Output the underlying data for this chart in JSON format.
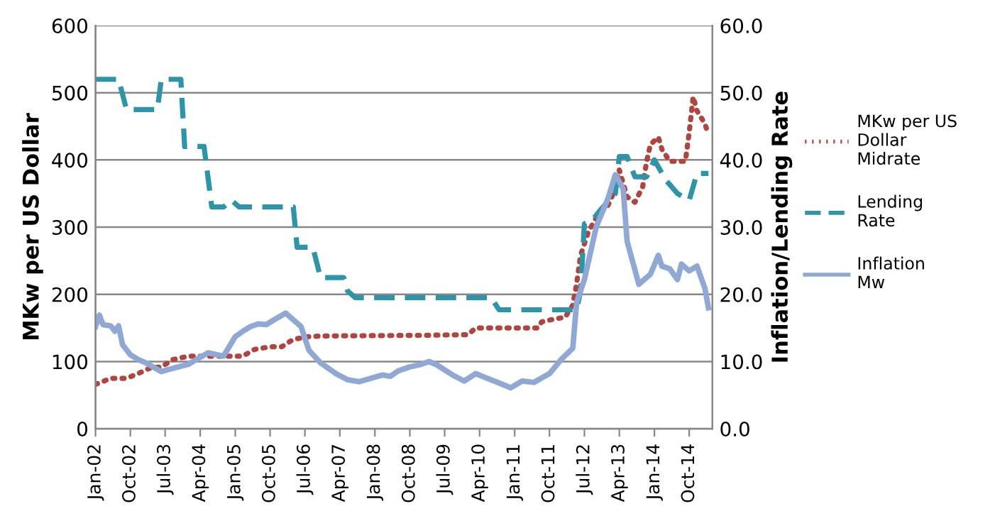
{
  "chart_data": {
    "type": "line",
    "xlabel": null,
    "ylabel": "MKw per US Dollar",
    "y2label": "Inflation/Lending Rate",
    "xlim": [
      "2002-01",
      "2015-04"
    ],
    "xticks": [
      {
        "value": "2002-01",
        "label": "Jan-02"
      },
      {
        "value": "2002-10",
        "label": "Oct-02"
      },
      {
        "value": "2003-07",
        "label": "Jul-03"
      },
      {
        "value": "2004-04",
        "label": "Apr-04"
      },
      {
        "value": "2005-01",
        "label": "Jan-05"
      },
      {
        "value": "2005-10",
        "label": "Oct-05"
      },
      {
        "value": "2006-07",
        "label": "Jul-06"
      },
      {
        "value": "2007-04",
        "label": "Apr-07"
      },
      {
        "value": "2008-01",
        "label": "Jan-08"
      },
      {
        "value": "2008-10",
        "label": "Oct-08"
      },
      {
        "value": "2009-07",
        "label": "Jul-09"
      },
      {
        "value": "2010-04",
        "label": "Apr-10"
      },
      {
        "value": "2011-01",
        "label": "Jan-11"
      },
      {
        "value": "2011-10",
        "label": "Oct-11"
      },
      {
        "value": "2012-07",
        "label": "Jul-12"
      },
      {
        "value": "2013-04",
        "label": "Apr-13"
      },
      {
        "value": "2014-01",
        "label": "Jan-14"
      },
      {
        "value": "2014-10",
        "label": "Oct-14"
      }
    ],
    "ylim": [
      0,
      600
    ],
    "yticks": [
      0,
      100,
      200,
      300,
      400,
      500,
      600
    ],
    "y2lim": [
      0,
      60
    ],
    "y2ticks": [
      {
        "value": 0,
        "label": "0.0"
      },
      {
        "value": 10,
        "label": "10.0"
      },
      {
        "value": 20,
        "label": "20.0"
      },
      {
        "value": 30,
        "label": "30.0"
      },
      {
        "value": 40,
        "label": "40.0"
      },
      {
        "value": 50,
        "label": "50.0"
      },
      {
        "value": 60,
        "label": "60.0"
      }
    ],
    "grid": "y",
    "legend": "right",
    "series": [
      {
        "name": "MKw per US Dollar Midrate",
        "color": "#b04440",
        "line_style": "dotted",
        "x": [
          "2002-01",
          "2002-05",
          "2002-09",
          "2002-12",
          "2003-03",
          "2003-06",
          "2003-09",
          "2004-01",
          "2005-03",
          "2005-06",
          "2005-10",
          "2006-01",
          "2006-04",
          "2006-08",
          "2006-11",
          "2009-01",
          "2010-01",
          "2010-03",
          "2011-07",
          "2011-08",
          "2011-11",
          "2012-02",
          "2012-04",
          "2012-05",
          "2012-06",
          "2012-08",
          "2012-10",
          "2013-01",
          "2013-03",
          "2013-04",
          "2013-06",
          "2013-08",
          "2013-10",
          "2013-11",
          "2013-12",
          "2014-02",
          "2014-03",
          "2014-05",
          "2014-09",
          "2014-10",
          "2014-11",
          "2014-12",
          "2015-02",
          "2015-03"
        ],
        "values": [
          66,
          75,
          75,
          82,
          90,
          92,
          103,
          108,
          108,
          118,
          122,
          122,
          133,
          137,
          138,
          139,
          140,
          150,
          150,
          159,
          163,
          166,
          184,
          216,
          258,
          293,
          314,
          332,
          357,
          385,
          345,
          337,
          360,
          398,
          423,
          434,
          416,
          398,
          398,
          441,
          494,
          473,
          454,
          437
        ]
      },
      {
        "name": "Lending Rate",
        "color": "#2e94a8",
        "line_style": "dashed",
        "axis": "y2",
        "x": [
          "2002-01",
          "2002-07",
          "2002-09",
          "2003-05",
          "2003-06",
          "2003-11",
          "2003-12",
          "2004-05",
          "2004-07",
          "2004-10",
          "2004-12",
          "2005-02",
          "2006-04",
          "2006-05",
          "2006-09",
          "2006-11",
          "2007-05",
          "2007-06",
          "2007-08",
          "2010-07",
          "2010-09",
          "2012-05",
          "2012-06",
          "2012-07",
          "2012-09",
          "2012-11",
          "2013-03",
          "2013-04",
          "2013-06",
          "2013-08",
          "2013-11",
          "2014-01",
          "2014-04",
          "2014-07",
          "2014-10",
          "2014-12",
          "2015-03"
        ],
        "values": [
          52.0,
          52.0,
          47.5,
          47.5,
          52.0,
          52.0,
          42.0,
          42.0,
          33.0,
          33.0,
          34.0,
          33.0,
          33.0,
          27.0,
          27.0,
          22.5,
          22.5,
          20.5,
          19.5,
          19.5,
          17.7,
          17.7,
          20.5,
          30.5,
          31.0,
          32.5,
          35.0,
          40.5,
          40.5,
          37.5,
          37.5,
          40.0,
          37.0,
          35.0,
          34.0,
          38.0,
          38.0
        ]
      },
      {
        "name": "Inflation Mw",
        "color": "#8fa8d4",
        "line_style": "solid",
        "axis": "y2",
        "x": [
          "2002-01",
          "2002-02",
          "2002-03",
          "2002-05",
          "2002-06",
          "2002-07",
          "2002-08",
          "2002-10",
          "2002-12",
          "2003-02",
          "2003-06",
          "2003-09",
          "2004-01",
          "2004-03",
          "2004-06",
          "2004-10",
          "2005-01",
          "2005-03",
          "2005-05",
          "2005-07",
          "2005-09",
          "2005-11",
          "2006-02",
          "2006-04",
          "2006-06",
          "2006-08",
          "2006-11",
          "2007-03",
          "2007-06",
          "2007-09",
          "2007-12",
          "2008-03",
          "2008-05",
          "2008-07",
          "2008-10",
          "2009-01",
          "2009-03",
          "2009-05",
          "2009-09",
          "2009-12",
          "2010-03",
          "2010-06",
          "2010-09",
          "2010-12",
          "2011-03",
          "2011-06",
          "2011-10",
          "2012-01",
          "2012-04",
          "2012-05",
          "2012-07",
          "2012-10",
          "2013-01",
          "2013-03",
          "2013-05",
          "2013-06",
          "2013-09",
          "2013-12",
          "2014-02",
          "2014-03",
          "2014-05",
          "2014-07",
          "2014-08",
          "2014-10",
          "2014-12",
          "2015-02",
          "2015-03"
        ],
        "values": [
          15.2,
          16.9,
          15.5,
          15.3,
          14.5,
          15.3,
          12.5,
          11.0,
          10.3,
          9.8,
          8.5,
          9.0,
          9.6,
          10.3,
          11.3,
          10.8,
          13.7,
          14.5,
          15.2,
          15.6,
          15.5,
          16.2,
          17.2,
          16.2,
          15.2,
          11.7,
          9.8,
          8.2,
          7.3,
          7.0,
          7.5,
          8.0,
          7.8,
          8.6,
          9.2,
          9.6,
          10.0,
          9.5,
          8.0,
          7.1,
          8.2,
          7.5,
          6.8,
          6.1,
          7.1,
          6.9,
          8.2,
          10.3,
          12.0,
          18.8,
          22.2,
          30.0,
          34.2,
          37.8,
          35.7,
          27.9,
          21.5,
          23.0,
          25.8,
          24.2,
          23.8,
          22.2,
          24.5,
          23.5,
          24.2,
          20.9,
          18.0
        ]
      }
    ]
  }
}
